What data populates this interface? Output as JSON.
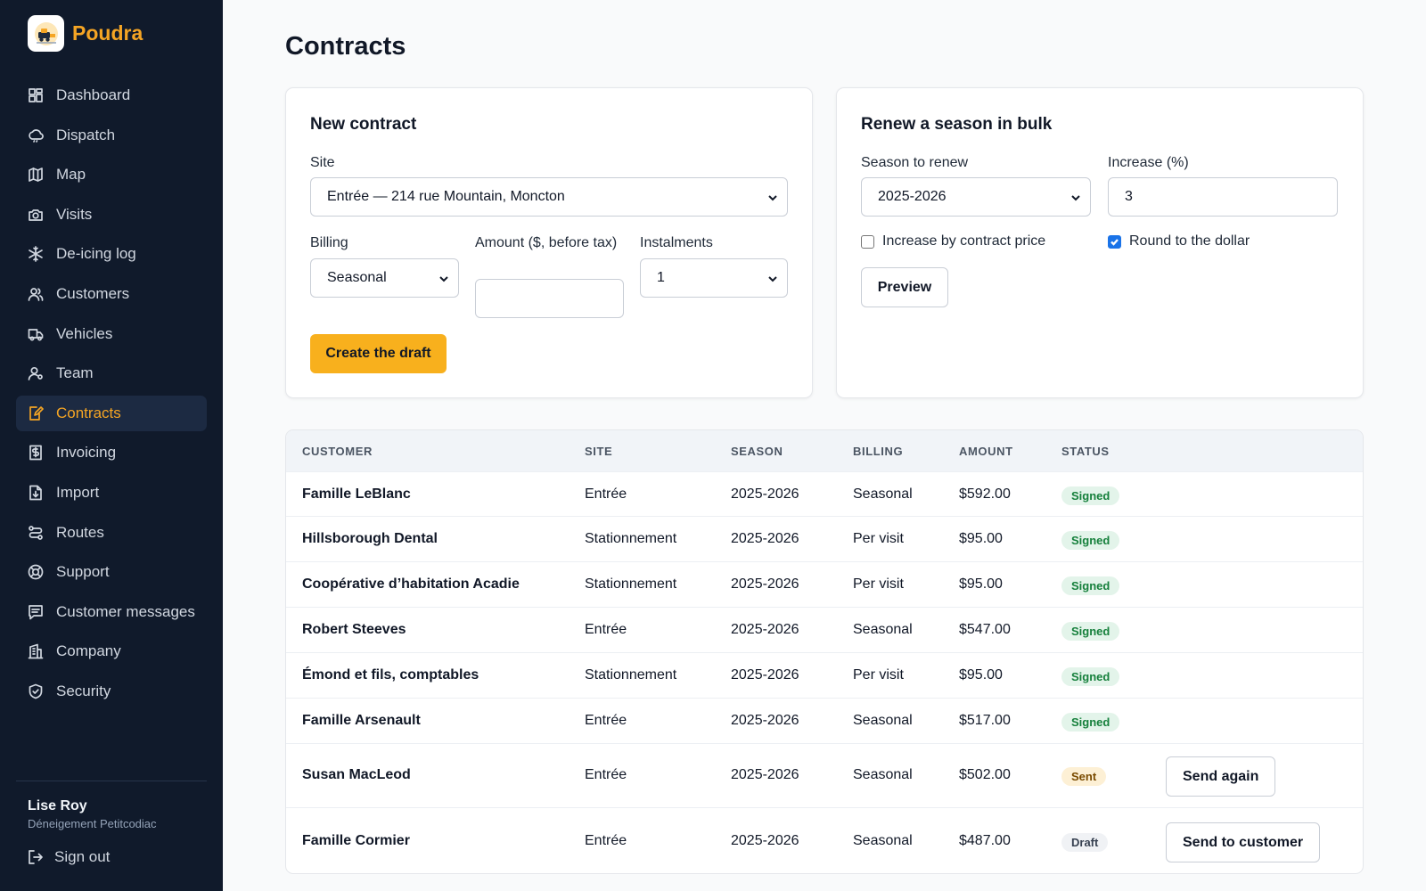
{
  "app": {
    "brand": "Poudra"
  },
  "sidebar": {
    "items": [
      {
        "label": "Dashboard",
        "icon": "dashboard-icon"
      },
      {
        "label": "Dispatch",
        "icon": "dispatch-icon"
      },
      {
        "label": "Map",
        "icon": "map-icon"
      },
      {
        "label": "Visits",
        "icon": "camera-icon"
      },
      {
        "label": "De-icing log",
        "icon": "snowflake-icon"
      },
      {
        "label": "Customers",
        "icon": "users-icon"
      },
      {
        "label": "Vehicles",
        "icon": "truck-icon"
      },
      {
        "label": "Team",
        "icon": "user-icon"
      },
      {
        "label": "Contracts",
        "icon": "contract-icon",
        "active": true
      },
      {
        "label": "Invoicing",
        "icon": "invoice-icon"
      },
      {
        "label": "Import",
        "icon": "import-icon"
      },
      {
        "label": "Routes",
        "icon": "routes-icon"
      },
      {
        "label": "Support",
        "icon": "support-icon"
      },
      {
        "label": "Customer messages",
        "icon": "messages-icon"
      },
      {
        "label": "Company",
        "icon": "company-icon"
      },
      {
        "label": "Security",
        "icon": "shield-icon"
      }
    ],
    "user": {
      "name": "Lise Roy",
      "org": "Déneigement Petitcodiac"
    },
    "signout": "Sign out"
  },
  "page": {
    "title": "Contracts"
  },
  "new_contract": {
    "title": "New contract",
    "site_label": "Site",
    "site_value": "Entrée — 214 rue Mountain, Moncton",
    "billing_label": "Billing",
    "billing_value": "Seasonal",
    "amount_label": "Amount ($, before tax)",
    "amount_value": "",
    "instalments_label": "Instalments",
    "instalments_value": "1",
    "create_button": "Create the draft"
  },
  "bulk_renew": {
    "title": "Renew a season in bulk",
    "season_label": "Season to renew",
    "season_value": "2025-2026",
    "increase_label": "Increase (%)",
    "increase_value": "3",
    "by_contract_price_label": "Increase by contract price",
    "by_contract_price_checked": false,
    "round_label": "Round to the dollar",
    "round_checked": true,
    "preview_button": "Preview"
  },
  "table": {
    "headers": {
      "customer": "CUSTOMER",
      "site": "SITE",
      "season": "SEASON",
      "billing": "BILLING",
      "amount": "AMOUNT",
      "status": "STATUS"
    },
    "rows": [
      {
        "customer": "Famille LeBlanc",
        "site": "Entrée",
        "season": "2025-2026",
        "billing": "Seasonal",
        "amount": "$592.00",
        "status": "Signed",
        "action": ""
      },
      {
        "customer": "Hillsborough Dental",
        "site": "Stationnement",
        "season": "2025-2026",
        "billing": "Per visit",
        "amount": "$95.00",
        "status": "Signed",
        "action": ""
      },
      {
        "customer": "Coopérative d’habitation Acadie",
        "site": "Stationnement",
        "season": "2025-2026",
        "billing": "Per visit",
        "amount": "$95.00",
        "status": "Signed",
        "action": ""
      },
      {
        "customer": "Robert Steeves",
        "site": "Entrée",
        "season": "2025-2026",
        "billing": "Seasonal",
        "amount": "$547.00",
        "status": "Signed",
        "action": ""
      },
      {
        "customer": "Émond et fils, comptables",
        "site": "Stationnement",
        "season": "2025-2026",
        "billing": "Per visit",
        "amount": "$95.00",
        "status": "Signed",
        "action": ""
      },
      {
        "customer": "Famille Arsenault",
        "site": "Entrée",
        "season": "2025-2026",
        "billing": "Seasonal",
        "amount": "$517.00",
        "status": "Signed",
        "action": ""
      },
      {
        "customer": "Susan MacLeod",
        "site": "Entrée",
        "season": "2025-2026",
        "billing": "Seasonal",
        "amount": "$502.00",
        "status": "Sent",
        "action": "Send again"
      },
      {
        "customer": "Famille Cormier",
        "site": "Entrée",
        "season": "2025-2026",
        "billing": "Seasonal",
        "amount": "$487.00",
        "status": "Draft",
        "action": "Send to customer"
      }
    ]
  },
  "colors": {
    "accent": "#f5a524",
    "sidebar_bg": "#101a2b",
    "status_signed_bg": "#e3f4ea",
    "status_signed_fg": "#16803c",
    "status_sent_bg": "#fdf0d5",
    "status_sent_fg": "#7a4b00",
    "status_draft_bg": "#f0f2f5",
    "status_draft_fg": "#374151"
  }
}
